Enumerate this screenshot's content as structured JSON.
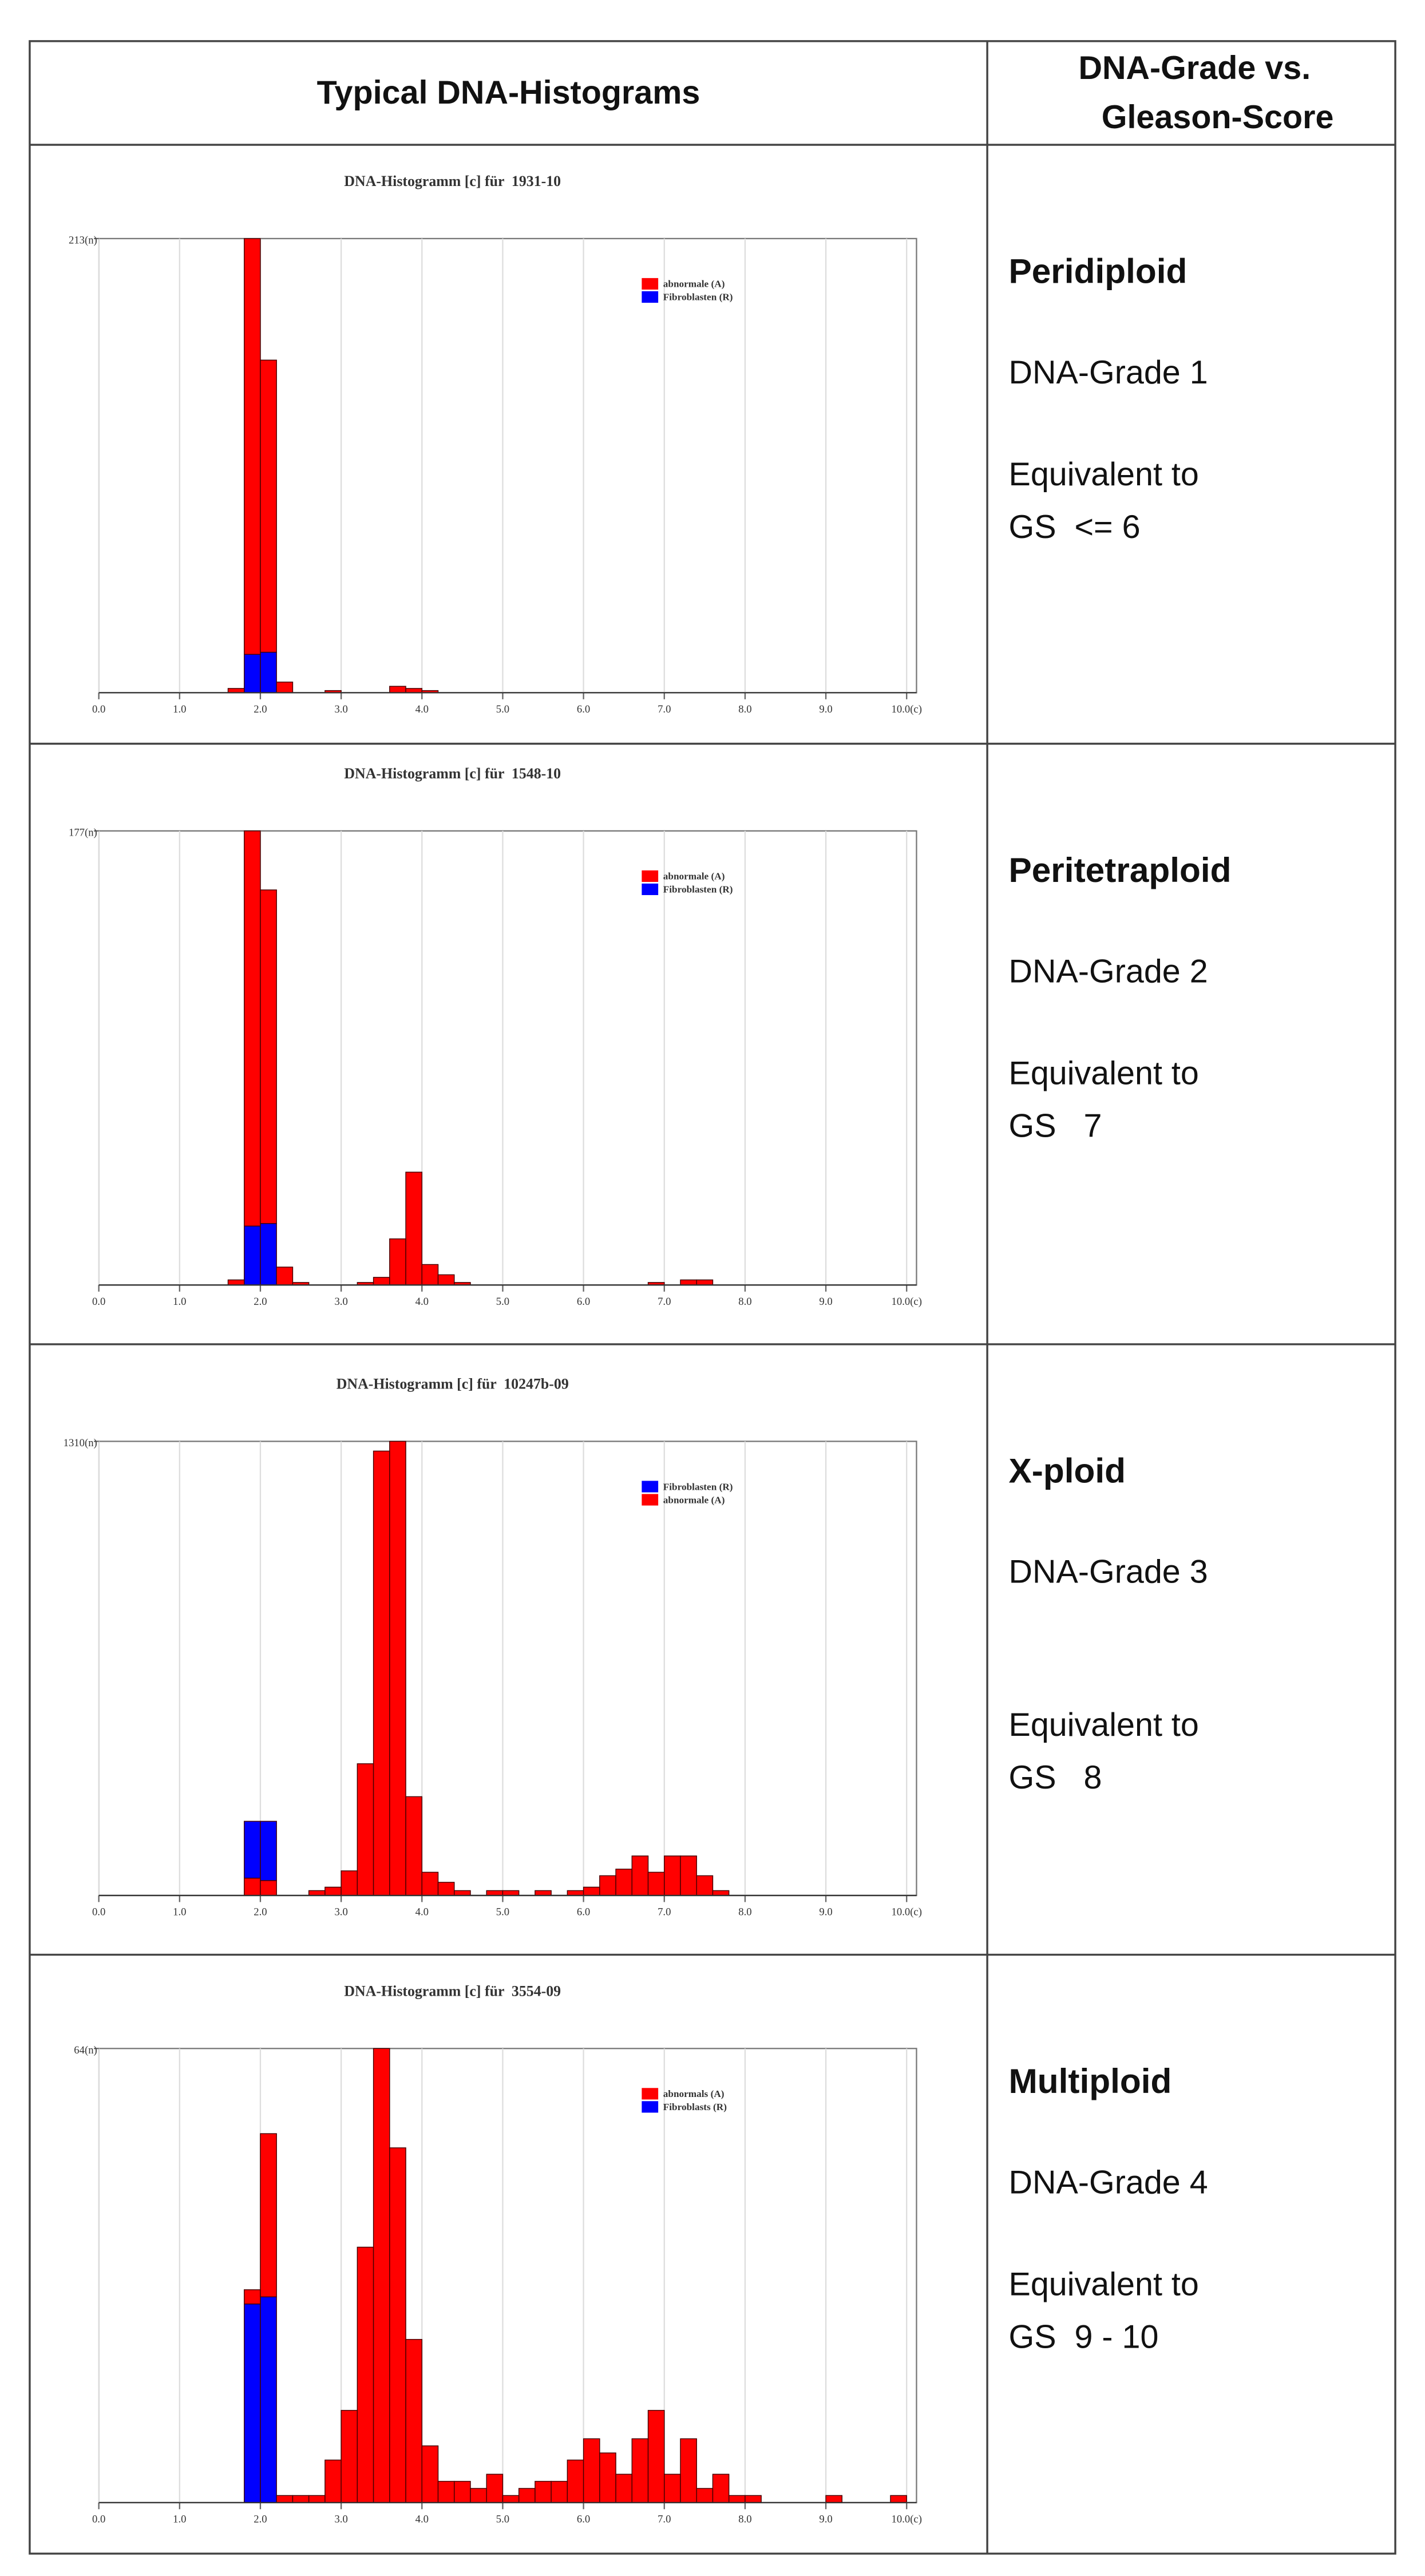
{
  "table": {
    "headers": {
      "left": "Typical DNA-Histograms",
      "right_lines": [
        "DNA-Grade vs.",
        "Gleason-Score"
      ]
    },
    "rows": [
      {
        "ploidy": "Peridiploid",
        "grade": "DNA-Grade 1",
        "equivalent": "Equivalent to",
        "gs": "GS  <= 6"
      },
      {
        "ploidy": "Peritetraploid",
        "grade": "DNA-Grade 2",
        "equivalent": "Equivalent to",
        "gs": "GS   7"
      },
      {
        "ploidy": "X-ploid",
        "grade": "DNA-Grade 3",
        "equivalent": "Equivalent to",
        "gs": "GS   8"
      },
      {
        "ploidy": "Multiploid",
        "grade": "DNA-Grade 4",
        "equivalent": "Equivalent to",
        "gs": "GS  9 - 10"
      }
    ]
  },
  "chart_data": [
    {
      "type": "histogram",
      "title": "DNA-Histogramm [c] für  1931-10",
      "bins": [
        0,
        0.2,
        0.4,
        0.6,
        0.8,
        1,
        1.2,
        1.4,
        1.6,
        1.8,
        2,
        2.2,
        2.4,
        2.6,
        2.8,
        3,
        3.2,
        3.4,
        3.6,
        3.8,
        4,
        4.2,
        4.4,
        4.6,
        4.8,
        5,
        5.2,
        5.4,
        5.6,
        5.8,
        6,
        6.2,
        6.4,
        6.6,
        6.8,
        7,
        7.2,
        7.4,
        7.6,
        7.8,
        8,
        8.2,
        8.4,
        8.6,
        8.8,
        9,
        9.2,
        9.4,
        9.6,
        9.8,
        10
      ],
      "series": [
        {
          "name": "abnormale (A)",
          "color": "#ff0000",
          "values": [
            0,
            0,
            0,
            0,
            0,
            0,
            0,
            0,
            2,
            195,
            137,
            5,
            0,
            0,
            1,
            0,
            0,
            0,
            3,
            2,
            1,
            0,
            0,
            0,
            0,
            0,
            0,
            0,
            0,
            0,
            0,
            0,
            0,
            0,
            0,
            0,
            0,
            0,
            0,
            0,
            0,
            0,
            0,
            0,
            0,
            0,
            0,
            0,
            0,
            0
          ]
        },
        {
          "name": "Fibroblasten (R)",
          "color": "#0000ff",
          "values": [
            0,
            0,
            0,
            0,
            0,
            0,
            0,
            0,
            0,
            18,
            19,
            0,
            0,
            0,
            0,
            0,
            0,
            0,
            0,
            0,
            0,
            0,
            0,
            0,
            0,
            0,
            0,
            0,
            0,
            0,
            0,
            0,
            0,
            0,
            0,
            0,
            0,
            0,
            0,
            0,
            0,
            0,
            0,
            0,
            0,
            0,
            0,
            0,
            0,
            0
          ]
        }
      ],
      "xlim": [
        0,
        10
      ],
      "ylim": [
        0,
        213
      ],
      "xticks": [
        {
          "value": 0,
          "label": "0.0"
        },
        {
          "value": 1,
          "label": "1.0"
        },
        {
          "value": 2,
          "label": "2.0"
        },
        {
          "value": 3,
          "label": "3.0"
        },
        {
          "value": 4,
          "label": "4.0"
        },
        {
          "value": 5,
          "label": "5.0"
        },
        {
          "value": 6,
          "label": "6.0"
        },
        {
          "value": 7,
          "label": "7.0"
        },
        {
          "value": 8,
          "label": "8.0"
        },
        {
          "value": 9,
          "label": "9.0"
        },
        {
          "value": 10,
          "label": "10.0(c)"
        }
      ],
      "yticks": [
        {
          "value": 213,
          "label": "213(n)"
        }
      ],
      "grid": true
    },
    {
      "type": "histogram",
      "title": "DNA-Histogramm [c] für  1548-10",
      "bins": [
        0,
        0.2,
        0.4,
        0.6,
        0.8,
        1,
        1.2,
        1.4,
        1.6,
        1.8,
        2,
        2.2,
        2.4,
        2.6,
        2.8,
        3,
        3.2,
        3.4,
        3.6,
        3.8,
        4,
        4.2,
        4.4,
        4.6,
        4.8,
        5,
        5.2,
        5.4,
        5.6,
        5.8,
        6,
        6.2,
        6.4,
        6.6,
        6.8,
        7,
        7.2,
        7.4,
        7.6,
        7.8,
        8,
        8.2,
        8.4,
        8.6,
        8.8,
        9,
        9.2,
        9.4,
        9.6,
        9.8,
        10
      ],
      "series": [
        {
          "name": "abnormale (A)",
          "color": "#ff0000",
          "values": [
            0,
            0,
            0,
            0,
            0,
            0,
            0,
            0,
            2,
            154,
            130,
            7,
            1,
            0,
            0,
            0,
            1,
            3,
            18,
            44,
            8,
            4,
            1,
            0,
            0,
            0,
            0,
            0,
            0,
            0,
            0,
            0,
            0,
            0,
            1,
            0,
            2,
            2,
            0,
            0,
            0,
            0,
            0,
            0,
            0,
            0,
            0,
            0,
            0,
            0
          ]
        },
        {
          "name": "Fibroblasten (R)",
          "color": "#0000ff",
          "values": [
            0,
            0,
            0,
            0,
            0,
            0,
            0,
            0,
            0,
            23,
            24,
            0,
            0,
            0,
            0,
            0,
            0,
            0,
            0,
            0,
            0,
            0,
            0,
            0,
            0,
            0,
            0,
            0,
            0,
            0,
            0,
            0,
            0,
            0,
            0,
            0,
            0,
            0,
            0,
            0,
            0,
            0,
            0,
            0,
            0,
            0,
            0,
            0,
            0,
            0
          ]
        }
      ],
      "xlim": [
        0,
        10
      ],
      "ylim": [
        0,
        177
      ],
      "xticks": [
        {
          "value": 0,
          "label": "0.0"
        },
        {
          "value": 1,
          "label": "1.0"
        },
        {
          "value": 2,
          "label": "2.0"
        },
        {
          "value": 3,
          "label": "3.0"
        },
        {
          "value": 4,
          "label": "4.0"
        },
        {
          "value": 5,
          "label": "5.0"
        },
        {
          "value": 6,
          "label": "6.0"
        },
        {
          "value": 7,
          "label": "7.0"
        },
        {
          "value": 8,
          "label": "8.0"
        },
        {
          "value": 9,
          "label": "9.0"
        },
        {
          "value": 10,
          "label": "10.0(c)"
        }
      ],
      "yticks": [
        {
          "value": 177,
          "label": "177(n)"
        }
      ],
      "grid": true
    },
    {
      "type": "histogram",
      "title": "DNA-Histogramm [c] für  10247b-09",
      "bins": [
        0,
        0.2,
        0.4,
        0.6,
        0.8,
        1,
        1.2,
        1.4,
        1.6,
        1.8,
        2,
        2.2,
        2.4,
        2.6,
        2.8,
        3,
        3.2,
        3.4,
        3.6,
        3.8,
        4,
        4.2,
        4.4,
        4.6,
        4.8,
        5,
        5.2,
        5.4,
        5.6,
        5.8,
        6,
        6.2,
        6.4,
        6.6,
        6.8,
        7,
        7.2,
        7.4,
        7.6,
        7.8,
        8,
        8.2,
        8.4,
        8.6,
        8.8,
        9,
        9.2,
        9.4,
        9.6,
        9.8,
        10
      ],
      "series": [
        {
          "name": "Fibroblasten (R)",
          "color": "#0000ff",
          "values": [
            0,
            0,
            0,
            0,
            0,
            0,
            0,
            0,
            0,
            164,
            171,
            0,
            0,
            0,
            0,
            0,
            0,
            0,
            0,
            0,
            0,
            0,
            0,
            0,
            0,
            0,
            0,
            0,
            0,
            0,
            0,
            0,
            0,
            0,
            0,
            0,
            0,
            0,
            0,
            0,
            0,
            0,
            0,
            0,
            0,
            0,
            0,
            0,
            0,
            0
          ]
        },
        {
          "name": "abnormale (A)",
          "color": "#ff0000",
          "values": [
            0,
            0,
            0,
            0,
            0,
            0,
            0,
            0,
            0,
            50,
            43,
            0,
            0,
            14,
            24,
            71,
            380,
            1282,
            1310,
            285,
            67,
            38,
            14,
            0,
            14,
            14,
            0,
            14,
            0,
            14,
            24,
            57,
            76,
            114,
            67,
            114,
            114,
            57,
            14,
            0,
            0,
            0,
            0,
            0,
            0,
            0,
            0,
            0,
            0,
            0
          ]
        }
      ],
      "xlim": [
        0,
        10
      ],
      "ylim": [
        0,
        1310
      ],
      "xticks": [
        {
          "value": 0,
          "label": "0.0"
        },
        {
          "value": 1,
          "label": "1.0"
        },
        {
          "value": 2,
          "label": "2.0"
        },
        {
          "value": 3,
          "label": "3.0"
        },
        {
          "value": 4,
          "label": "4.0"
        },
        {
          "value": 5,
          "label": "5.0"
        },
        {
          "value": 6,
          "label": "6.0"
        },
        {
          "value": 7,
          "label": "7.0"
        },
        {
          "value": 8,
          "label": "8.0"
        },
        {
          "value": 9,
          "label": "9.0"
        },
        {
          "value": 10,
          "label": "10.0(c)"
        }
      ],
      "yticks": [
        {
          "value": 1310,
          "label": "1310(n)"
        }
      ],
      "grid": true
    },
    {
      "type": "histogram",
      "title": "DNA-Histogramm [c] für  3554-09",
      "bins": [
        0,
        0.2,
        0.4,
        0.6,
        0.8,
        1,
        1.2,
        1.4,
        1.6,
        1.8,
        2,
        2.2,
        2.4,
        2.6,
        2.8,
        3,
        3.2,
        3.4,
        3.6,
        3.8,
        4,
        4.2,
        4.4,
        4.6,
        4.8,
        5,
        5.2,
        5.4,
        5.6,
        5.8,
        6,
        6.2,
        6.4,
        6.6,
        6.8,
        7,
        7.2,
        7.4,
        7.6,
        7.8,
        8,
        8.2,
        8.4,
        8.6,
        8.8,
        9,
        9.2,
        9.4,
        9.6,
        9.8,
        10
      ],
      "series": [
        {
          "name": "abnormals (A)",
          "color": "#ff0000",
          "values": [
            0,
            0,
            0,
            0,
            0,
            0,
            0,
            0,
            0,
            2,
            23,
            1,
            1,
            1,
            6,
            13,
            36,
            64,
            50,
            23,
            8,
            3,
            3,
            2,
            4,
            1,
            2,
            3,
            3,
            6,
            9,
            7,
            4,
            9,
            13,
            4,
            9,
            2,
            4,
            1,
            1,
            0,
            0,
            0,
            0,
            1,
            0,
            0,
            0,
            1
          ]
        },
        {
          "name": "Fibroblasts (R)",
          "color": "#0000ff",
          "values": [
            0,
            0,
            0,
            0,
            0,
            0,
            0,
            0,
            0,
            28,
            29,
            0,
            0,
            0,
            0,
            0,
            0,
            0,
            0,
            0,
            0,
            0,
            0,
            0,
            0,
            0,
            0,
            0,
            0,
            0,
            0,
            0,
            0,
            0,
            0,
            0,
            0,
            0,
            0,
            0,
            0,
            0,
            0,
            0,
            0,
            0,
            0,
            0,
            0,
            0
          ]
        }
      ],
      "xlim": [
        0,
        10
      ],
      "ylim": [
        0,
        64
      ],
      "xticks": [
        {
          "value": 0,
          "label": "0.0"
        },
        {
          "value": 1,
          "label": "1.0"
        },
        {
          "value": 2,
          "label": "2.0"
        },
        {
          "value": 3,
          "label": "3.0"
        },
        {
          "value": 4,
          "label": "4.0"
        },
        {
          "value": 5,
          "label": "5.0"
        },
        {
          "value": 6,
          "label": "6.0"
        },
        {
          "value": 7,
          "label": "7.0"
        },
        {
          "value": 8,
          "label": "8.0"
        },
        {
          "value": 9,
          "label": "9.0"
        },
        {
          "value": 10,
          "label": "10.0(c)"
        }
      ],
      "yticks": [
        {
          "value": 64,
          "label": "64(n)"
        }
      ],
      "grid": true
    }
  ]
}
